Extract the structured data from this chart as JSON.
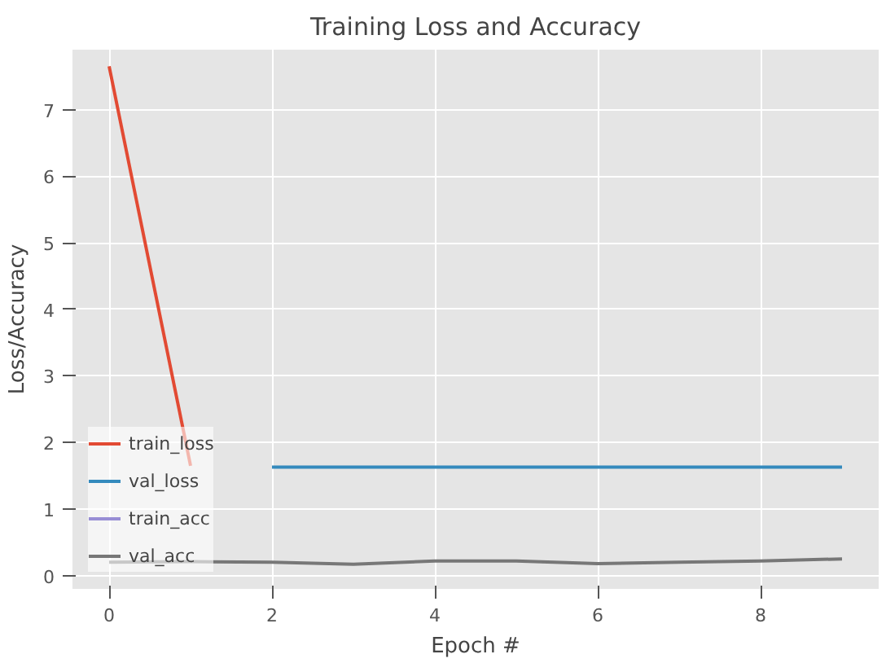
{
  "chart_data": {
    "type": "line",
    "title": "Training Loss and Accuracy",
    "xlabel": "Epoch #",
    "ylabel": "Loss/Accuracy",
    "x": [
      0,
      1,
      2,
      3,
      4,
      5,
      6,
      7,
      8,
      9
    ],
    "series": [
      {
        "name": "train_loss",
        "color": "#e24a33",
        "values": [
          7.65,
          1.65,
          null,
          null,
          null,
          null,
          null,
          null,
          null,
          null
        ]
      },
      {
        "name": "val_loss",
        "color": "#348abd",
        "values": [
          null,
          null,
          1.63,
          1.63,
          1.63,
          1.63,
          1.63,
          1.63,
          1.63,
          1.63
        ]
      },
      {
        "name": "train_acc",
        "color": "#988ed5",
        "values": [
          null,
          null,
          null,
          null,
          null,
          null,
          null,
          null,
          null,
          null
        ]
      },
      {
        "name": "val_acc",
        "color": "#777777",
        "values": [
          0.2,
          0.21,
          0.2,
          0.17,
          0.22,
          0.22,
          0.18,
          0.2,
          0.22,
          0.25
        ]
      }
    ],
    "xlim": [
      -0.45,
      9.45
    ],
    "ylim": [
      -0.2,
      7.9
    ],
    "xticks": [
      0,
      2,
      4,
      6,
      8
    ],
    "yticks": [
      0,
      1,
      2,
      3,
      4,
      5,
      6,
      7
    ],
    "grid": true,
    "legend": "bottom left",
    "line_style": "solid"
  }
}
